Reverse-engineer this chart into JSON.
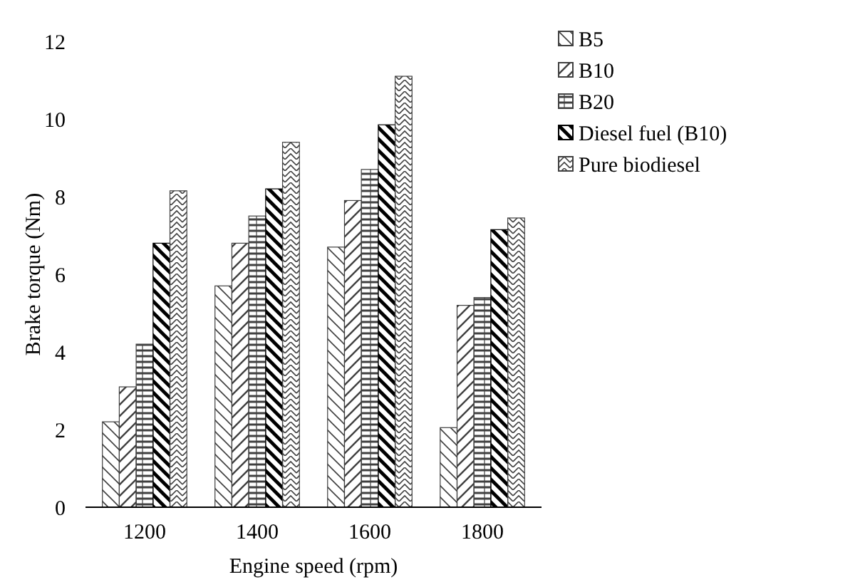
{
  "chart_data": {
    "type": "bar",
    "xlabel": "Engine speed (rpm)",
    "ylabel": "Brake torque (Nm)",
    "categories": [
      "1200",
      "1400",
      "1600",
      "1800"
    ],
    "series": [
      {
        "name": "B5",
        "color": "#404040",
        "values": [
          2.2,
          5.7,
          6.7,
          2.05
        ]
      },
      {
        "name": "B10",
        "color": "#404040",
        "values": [
          3.1,
          6.8,
          7.9,
          5.2
        ]
      },
      {
        "name": "B20",
        "color": "#404040",
        "values": [
          4.2,
          7.5,
          8.7,
          5.4
        ]
      },
      {
        "name": "Diesel fuel (B10)",
        "color": "#000000",
        "values": [
          6.8,
          8.2,
          9.85,
          7.15
        ]
      },
      {
        "name": "Pure biodiesel",
        "color": "#404040",
        "values": [
          8.15,
          9.4,
          11.1,
          7.45
        ]
      }
    ],
    "ylim": [
      0,
      12
    ],
    "yticks": [
      0,
      2,
      4,
      6,
      8,
      10,
      12
    ],
    "grid": false,
    "legend": "top right"
  }
}
